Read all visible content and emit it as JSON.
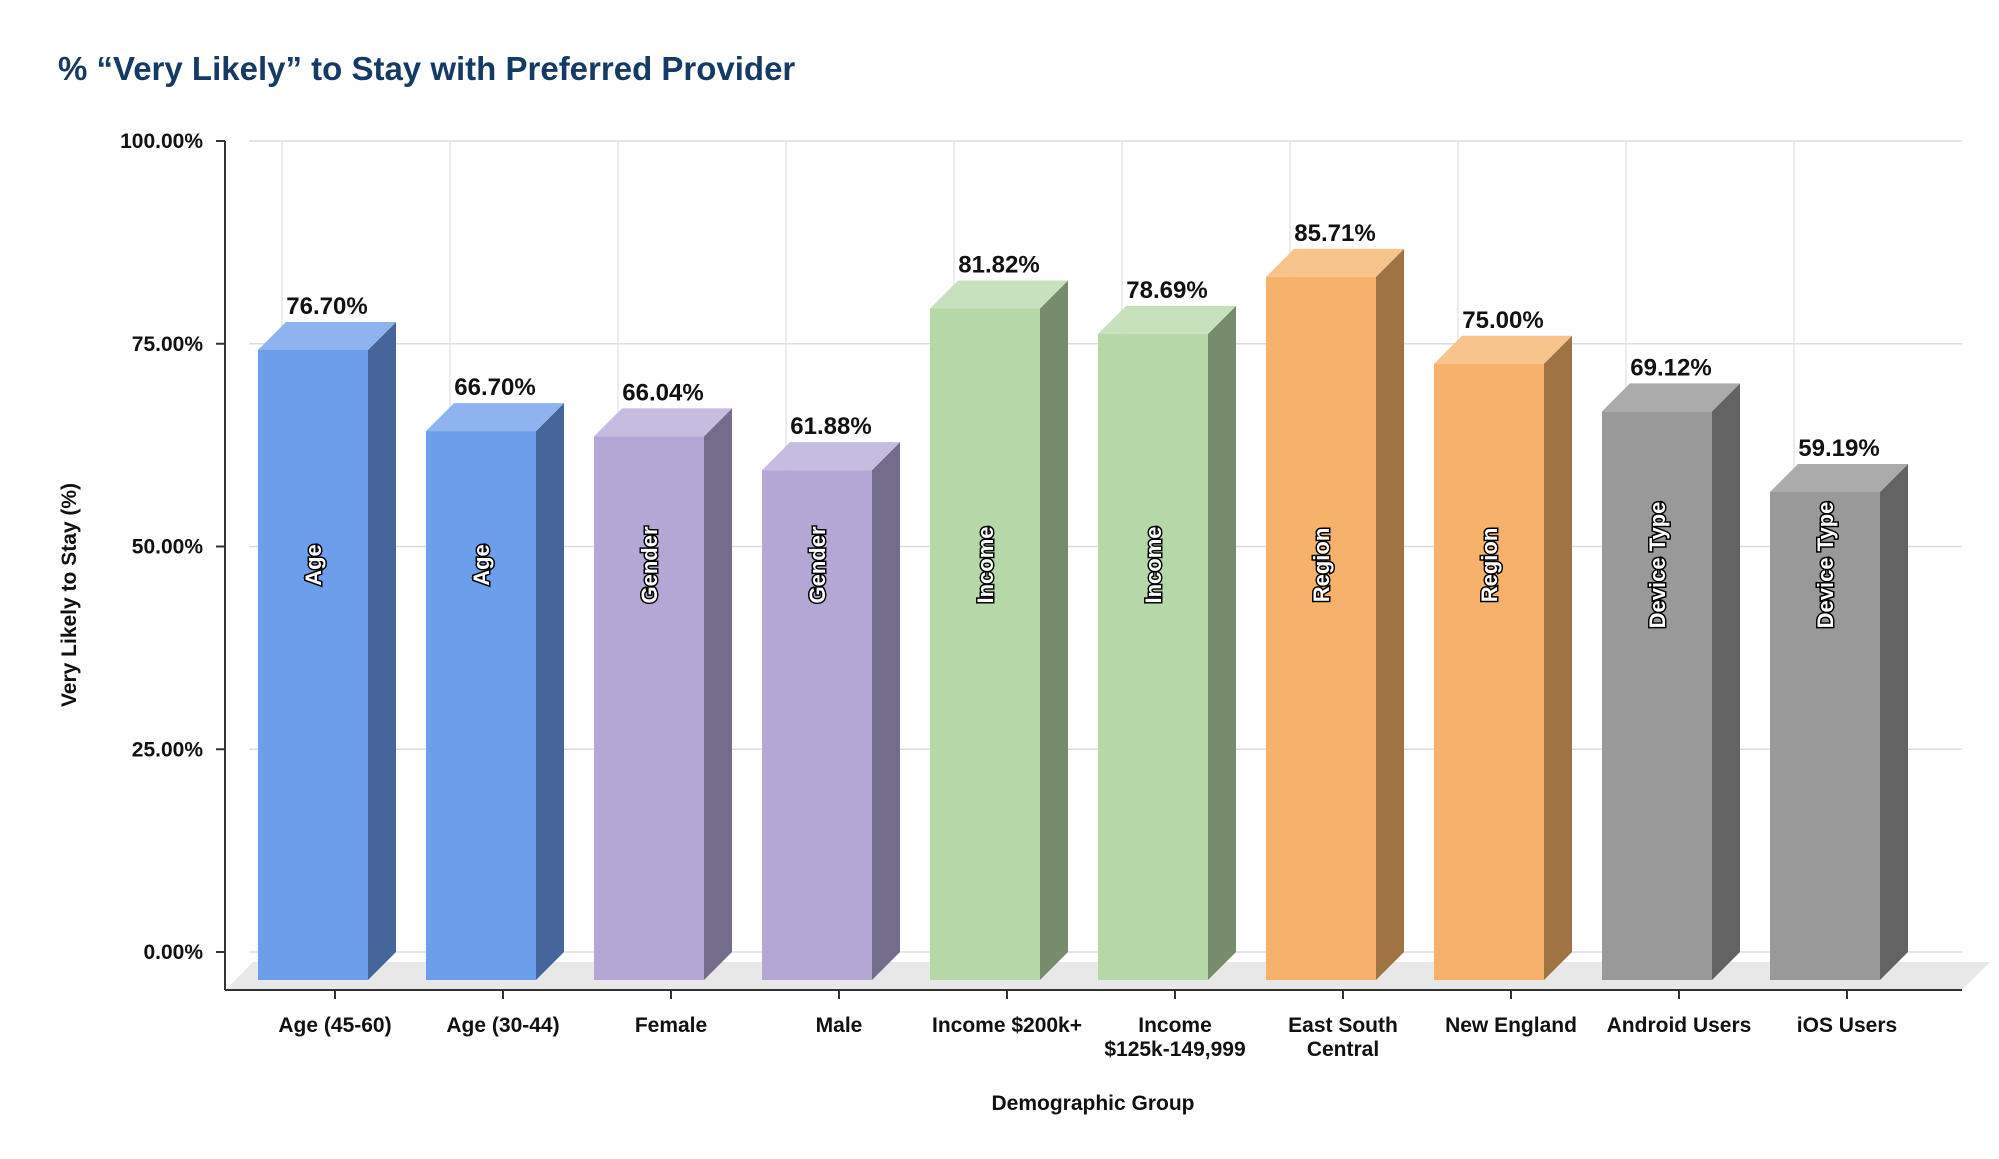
{
  "chart_data": {
    "type": "bar",
    "title": "% “Very Likely” to Stay with Preferred Provider",
    "xlabel": "Demographic Group",
    "ylabel": "Very Likely to Stay (%)",
    "ylim": [
      0,
      100
    ],
    "yticks": [
      0,
      25,
      50,
      75,
      100
    ],
    "ytick_labels": [
      "0.00%",
      "25.00%",
      "50.00%",
      "75.00%",
      "100.00%"
    ],
    "grid": true,
    "categories": [
      "Age (45-60)",
      "Age (30-44)",
      "Female",
      "Male",
      "Income $200k+",
      "Income $125k-149,999",
      "East South Central",
      "New England",
      "Android Users",
      "iOS Users"
    ],
    "category_label_lines": [
      [
        "Age (45-60)"
      ],
      [
        "Age (30-44)"
      ],
      [
        "Female"
      ],
      [
        "Male"
      ],
      [
        "Income $200k+"
      ],
      [
        "Income",
        "$125k-149,999"
      ],
      [
        "East South",
        "Central"
      ],
      [
        "New England"
      ],
      [
        "Android Users"
      ],
      [
        "iOS Users"
      ]
    ],
    "values": [
      76.7,
      66.7,
      66.04,
      61.88,
      81.82,
      78.69,
      85.71,
      75.0,
      69.12,
      59.19
    ],
    "value_labels": [
      "76.70%",
      "66.70%",
      "66.04%",
      "61.88%",
      "81.82%",
      "78.69%",
      "85.71%",
      "75.00%",
      "69.12%",
      "59.19%"
    ],
    "groups": [
      "Age",
      "Age",
      "Gender",
      "Gender",
      "Income",
      "Income",
      "Region",
      "Region",
      "Device Type",
      "Device Type"
    ],
    "group_colors": {
      "Age": {
        "front": "#6d9eeb",
        "top": "#8eb3ef",
        "side": "#46669b"
      },
      "Gender": {
        "front": "#b4a7d6",
        "top": "#c5bce0",
        "side": "#746c8b"
      },
      "Income": {
        "front": "#b6d7a8",
        "top": "#c8e1bd",
        "side": "#768c6d"
      },
      "Region": {
        "front": "#f6b26b",
        "top": "#f8c48e",
        "side": "#a07345"
      },
      "Device Type": {
        "front": "#999999",
        "top": "#ababab",
        "side": "#636363"
      }
    }
  }
}
